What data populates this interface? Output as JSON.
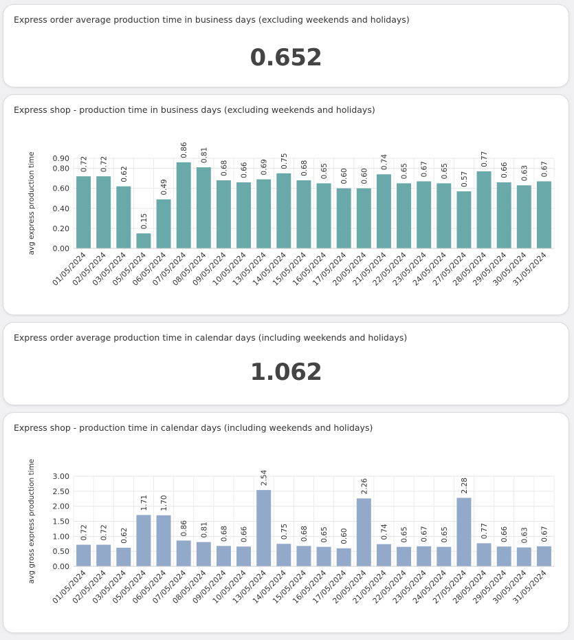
{
  "kpi1": {
    "title": "Express order average production time in business days (excluding weekends and holidays)",
    "value": "0.652"
  },
  "kpi2": {
    "title": "Express order average production time in calendar days (including weekends and holidays)",
    "value": "1.062"
  },
  "chart1_title": "Express shop - production time in business days (excluding weekends and holidays)",
  "chart2_title": "Express shop - production time in calendar days (including weekends and holidays)",
  "chart_data": [
    {
      "type": "bar",
      "title": "Express shop - production time in business days (excluding weekends and holidays)",
      "xlabel": "",
      "ylabel": "avg express production time",
      "categories": [
        "01/05/2024",
        "02/05/2024",
        "03/05/2024",
        "05/05/2024",
        "06/05/2024",
        "07/05/2024",
        "08/05/2024",
        "09/05/2024",
        "10/05/2024",
        "13/05/2024",
        "14/05/2024",
        "15/05/2024",
        "16/05/2024",
        "17/05/2024",
        "20/05/2024",
        "21/05/2024",
        "22/05/2024",
        "23/05/2024",
        "24/05/2024",
        "27/05/2024",
        "28/05/2024",
        "29/05/2024",
        "30/05/2024",
        "31/05/2024"
      ],
      "values": [
        0.72,
        0.72,
        0.62,
        0.15,
        0.49,
        0.86,
        0.81,
        0.68,
        0.66,
        0.69,
        0.75,
        0.68,
        0.65,
        0.6,
        0.6,
        0.74,
        0.65,
        0.67,
        0.65,
        0.57,
        0.77,
        0.66,
        0.63,
        0.67
      ],
      "value_labels": [
        "0.72",
        "0.72",
        "0.62",
        "0.15",
        "0.49",
        "0.86",
        "0.81",
        "0.68",
        "0.66",
        "0.69",
        "0.75",
        "0.68",
        "0.65",
        "0.60",
        "0.60",
        "0.74",
        "0.65",
        "0.67",
        "0.65",
        "0.57",
        "0.77",
        "0.66",
        "0.63",
        "0.67"
      ],
      "yticks": [
        "0.00",
        "0.20",
        "0.40",
        "0.60",
        "0.80",
        "0.90"
      ],
      "ylim": [
        0,
        0.9
      ],
      "grid": true,
      "color": "#6aa9a9"
    },
    {
      "type": "bar",
      "title": "Express shop - production time in calendar days (including weekends and holidays)",
      "xlabel": "",
      "ylabel": "avg gross express production time",
      "categories": [
        "01/05/2024",
        "02/05/2024",
        "03/05/2024",
        "05/05/2024",
        "06/05/2024",
        "07/05/2024",
        "08/05/2024",
        "09/05/2024",
        "10/05/2024",
        "13/05/2024",
        "14/05/2024",
        "15/05/2024",
        "16/05/2024",
        "17/05/2024",
        "20/05/2024",
        "21/05/2024",
        "22/05/2024",
        "23/05/2024",
        "24/05/2024",
        "27/05/2024",
        "28/05/2024",
        "29/05/2024",
        "30/05/2024",
        "31/05/2024"
      ],
      "values": [
        0.72,
        0.72,
        0.62,
        1.71,
        1.7,
        0.86,
        0.81,
        0.68,
        0.66,
        2.54,
        0.75,
        0.68,
        0.65,
        0.6,
        2.26,
        0.74,
        0.65,
        0.67,
        0.65,
        2.28,
        0.77,
        0.66,
        0.63,
        0.67
      ],
      "value_labels": [
        "0.72",
        "0.72",
        "0.62",
        "1.71",
        "1.70",
        "0.86",
        "0.81",
        "0.68",
        "0.66",
        "2.54",
        "0.75",
        "0.68",
        "0.65",
        "0.60",
        "2.26",
        "0.74",
        "0.65",
        "0.67",
        "0.65",
        "2.28",
        "0.77",
        "0.66",
        "0.63",
        "0.67"
      ],
      "yticks": [
        "0.00",
        "0.50",
        "1.00",
        "1.50",
        "2.00",
        "2.50",
        "3.00"
      ],
      "ylim": [
        0,
        3.0
      ],
      "grid": true,
      "color": "#92a9c9"
    }
  ]
}
